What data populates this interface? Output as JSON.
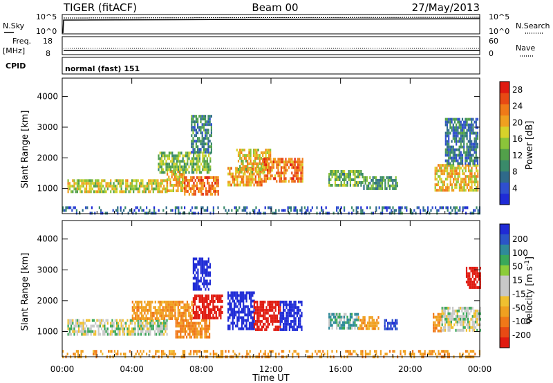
{
  "header": {
    "station": "TIGER (fitACF)",
    "beam": "Beam 00",
    "date": "27/May/2013"
  },
  "panels": {
    "nsky": {
      "label": "N.Sky",
      "ticks": [
        "10^5",
        "10^0"
      ]
    },
    "nsearch": {
      "label": "N.Search",
      "ticks": [
        "10^5",
        "10^0"
      ]
    },
    "freq": {
      "label_line1": "Freq.",
      "label_line2": "[MHz]",
      "ticks": [
        "18",
        "8"
      ]
    },
    "nave": {
      "label": "Nave",
      "ticks": [
        "60",
        "0"
      ]
    },
    "cpid": {
      "label": "CPID",
      "value": "normal (fast) 151"
    }
  },
  "colors": {
    "power_scale": [
      "#1f2bd6",
      "#2f4fcf",
      "#2f6a8a",
      "#3a8a6a",
      "#52a04a",
      "#8bc43a",
      "#d8d22a",
      "#f0a020",
      "#f07a18",
      "#e84a14",
      "#e01a10"
    ],
    "velocity_scale": [
      "#1f2bd6",
      "#2b55c8",
      "#2f8a9a",
      "#3aa85a",
      "#8ccc3a",
      "#c8c8c8",
      "#c8c8c8",
      "#f0c030",
      "#f0a020",
      "#f07818",
      "#e84a14",
      "#e01a10"
    ],
    "gray": "#c8c8c8"
  },
  "chart_data": [
    {
      "type": "heatmap",
      "title": "",
      "xlabel": "Time UT",
      "ylabel": "Slant Range [km]",
      "x_ticks": [
        "00:00",
        "04:00",
        "08:00",
        "12:00",
        "16:00",
        "20:00",
        "00:00"
      ],
      "y_ticks": [
        "1000",
        "2000",
        "3000",
        "4000"
      ],
      "xlim": [
        0,
        24
      ],
      "ylim": [
        180,
        4600
      ],
      "colorbar": {
        "label": "Power [dB]",
        "ticks": [
          "4",
          "8",
          "12",
          "16",
          "20",
          "24",
          "28"
        ],
        "range": [
          0,
          30
        ]
      },
      "regions": [
        {
          "t0": 0.3,
          "t1": 6.0,
          "r0": 850,
          "r1": 1300,
          "v": 17
        },
        {
          "t0": 6.0,
          "t1": 7.0,
          "r0": 900,
          "r1": 1600,
          "v": 19
        },
        {
          "t0": 7.0,
          "t1": 9.0,
          "r0": 800,
          "r1": 1400,
          "v": 24
        },
        {
          "t0": 5.5,
          "t1": 8.5,
          "r0": 1500,
          "r1": 2200,
          "v": 14
        },
        {
          "t0": 7.4,
          "t1": 8.6,
          "r0": 2200,
          "r1": 3400,
          "v": 9
        },
        {
          "t0": 9.5,
          "t1": 11.5,
          "r0": 1100,
          "r1": 1700,
          "v": 21
        },
        {
          "t0": 10.0,
          "t1": 12.0,
          "r0": 1500,
          "r1": 2300,
          "v": 18
        },
        {
          "t0": 11.5,
          "t1": 13.8,
          "r0": 1200,
          "r1": 2000,
          "v": 23
        },
        {
          "t0": 15.3,
          "t1": 17.3,
          "r0": 1100,
          "r1": 1600,
          "v": 13
        },
        {
          "t0": 17.3,
          "t1": 19.3,
          "r0": 1000,
          "r1": 1400,
          "v": 11
        },
        {
          "t0": 21.4,
          "t1": 23.9,
          "r0": 900,
          "r1": 1800,
          "v": 19
        },
        {
          "t0": 22.0,
          "t1": 23.9,
          "r0": 1800,
          "r1": 3300,
          "v": 8
        },
        {
          "t0": 0.0,
          "t1": 24.0,
          "r0": 180,
          "r1": 420,
          "v": 6
        }
      ]
    },
    {
      "type": "heatmap",
      "title": "",
      "xlabel": "Time UT",
      "ylabel": "Slant Range [km]",
      "x_ticks": [
        "00:00",
        "04:00",
        "08:00",
        "12:00",
        "16:00",
        "20:00",
        "00:00"
      ],
      "y_ticks": [
        "1000",
        "2000",
        "3000",
        "4000"
      ],
      "xlim": [
        0,
        24
      ],
      "ylim": [
        180,
        4600
      ],
      "colorbar": {
        "label": "Velocity [m s^-1]",
        "ticks": [
          "200",
          "100",
          "50",
          "15",
          "-15",
          "-50",
          "-100",
          "-200"
        ],
        "range": [
          -250,
          250
        ]
      },
      "regions": [
        {
          "t0": 0.3,
          "t1": 6.0,
          "r0": 900,
          "r1": 1400,
          "v": 0
        },
        {
          "t0": 4.0,
          "t1": 7.5,
          "r0": 1400,
          "r1": 2000,
          "v": -60
        },
        {
          "t0": 6.5,
          "t1": 8.5,
          "r0": 800,
          "r1": 1400,
          "v": -80
        },
        {
          "t0": 7.5,
          "t1": 9.2,
          "r0": 1400,
          "r1": 2200,
          "v": -200
        },
        {
          "t0": 7.5,
          "t1": 8.5,
          "r0": 2400,
          "r1": 3400,
          "v": 200
        },
        {
          "t0": 9.5,
          "t1": 11.0,
          "r0": 1100,
          "r1": 2300,
          "v": 200
        },
        {
          "t0": 11.0,
          "t1": 12.5,
          "r0": 1100,
          "r1": 2000,
          "v": -200
        },
        {
          "t0": 12.5,
          "t1": 13.8,
          "r0": 1100,
          "r1": 2000,
          "v": 200
        },
        {
          "t0": 15.3,
          "t1": 17.0,
          "r0": 1100,
          "r1": 1600,
          "v": 30
        },
        {
          "t0": 17.0,
          "t1": 18.2,
          "r0": 1100,
          "r1": 1500,
          "v": -60
        },
        {
          "t0": 18.5,
          "t1": 19.2,
          "r0": 1050,
          "r1": 1400,
          "v": 150
        },
        {
          "t0": 21.3,
          "t1": 21.8,
          "r0": 1000,
          "r1": 1600,
          "v": -80
        },
        {
          "t0": 21.8,
          "t1": 24.0,
          "r0": 1000,
          "r1": 1800,
          "v": 0
        },
        {
          "t0": 23.2,
          "t1": 24.0,
          "r0": 2400,
          "r1": 3100,
          "v": -200
        },
        {
          "t0": 0.0,
          "t1": 24.0,
          "r0": 180,
          "r1": 400,
          "v": -60
        }
      ]
    }
  ]
}
